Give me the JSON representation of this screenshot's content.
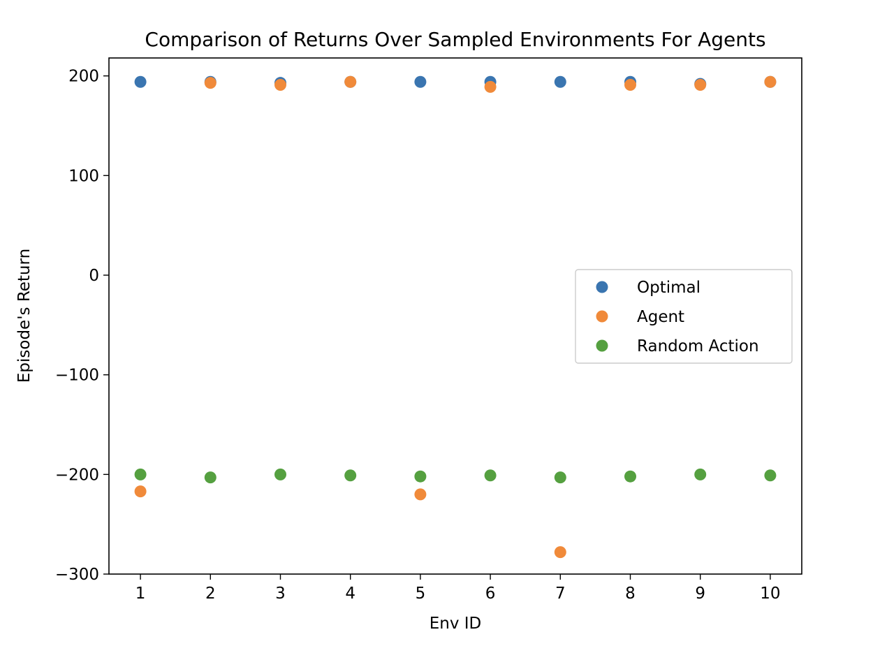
{
  "chart_data": {
    "type": "scatter",
    "title": "Comparison of Returns Over Sampled Environments For Agents",
    "xlabel": "Env ID",
    "ylabel": "Episode's Return",
    "xlim": [
      0.55,
      10.45
    ],
    "ylim": [
      -300,
      218
    ],
    "xticks": [
      1,
      2,
      3,
      4,
      5,
      6,
      7,
      8,
      9,
      10
    ],
    "yticks": [
      -300,
      -200,
      -100,
      0,
      100,
      200
    ],
    "ytick_labels": [
      "−300",
      "−200",
      "−100",
      "0",
      "100",
      "200"
    ],
    "grid": false,
    "legend_position": "center-right",
    "series": [
      {
        "name": "Optimal",
        "color": "#3a75b0",
        "x": [
          1,
          2,
          3,
          4,
          5,
          6,
          7,
          8,
          9,
          10
        ],
        "y": [
          194,
          194,
          193,
          194,
          194,
          194,
          194,
          194,
          192,
          194
        ]
      },
      {
        "name": "Agent",
        "color": "#f08a3a",
        "x": [
          1,
          2,
          3,
          4,
          5,
          6,
          7,
          8,
          9,
          10
        ],
        "y": [
          -217,
          193,
          191,
          194,
          -220,
          189,
          -278,
          191,
          191,
          194
        ]
      },
      {
        "name": "Random Action",
        "color": "#55a040",
        "x": [
          1,
          2,
          3,
          4,
          5,
          6,
          7,
          8,
          9,
          10
        ],
        "y": [
          -200,
          -203,
          -200,
          -201,
          -202,
          -201,
          -203,
          -202,
          -200,
          -201
        ]
      }
    ]
  }
}
